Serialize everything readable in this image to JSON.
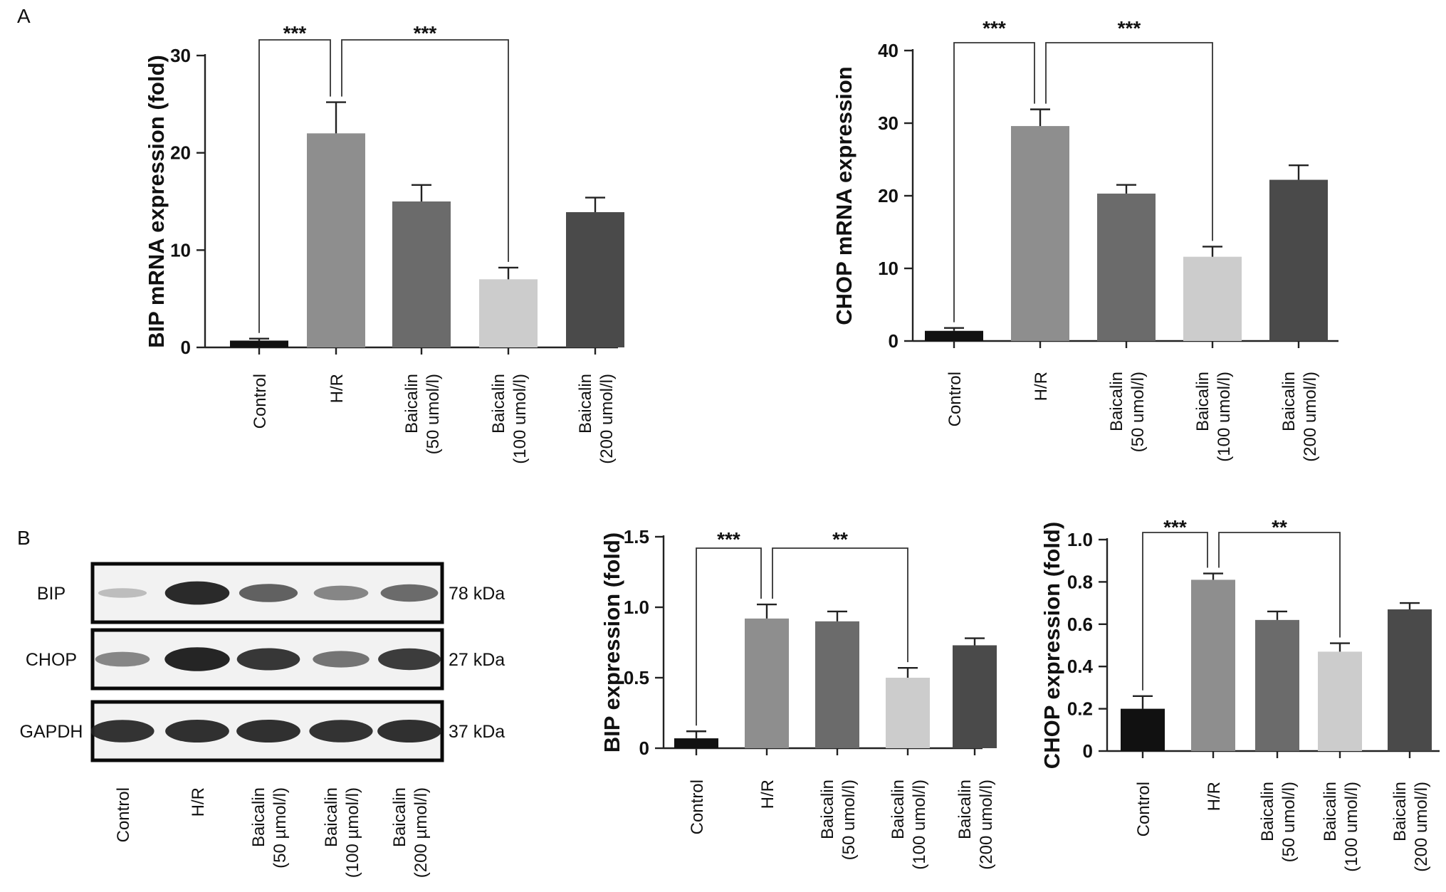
{
  "panel_labels": {
    "a": "A",
    "b": "B"
  },
  "chart_data": [
    {
      "type": "bar",
      "ylabel": "BIP mRNA expression (fold)",
      "ylim": [
        0,
        30
      ],
      "yticks": [
        "0",
        "10",
        "20",
        "30"
      ],
      "categories": [
        [
          "Control"
        ],
        [
          "H/R"
        ],
        [
          "Baicalin",
          "(50 umol/l)"
        ],
        [
          "Baicalin",
          "(100 umol/l)"
        ],
        [
          "Baicalin",
          "(200 umol/l)"
        ]
      ],
      "values": [
        0.7,
        22.0,
        15.0,
        7.0,
        13.9
      ],
      "errors": [
        0.2,
        3.2,
        1.7,
        1.2,
        1.5
      ],
      "colors": [
        "#111111",
        "#8e8e8e",
        "#6b6b6b",
        "#cccccc",
        "#4a4a4a"
      ],
      "significance": [
        {
          "from": 0,
          "to": 1,
          "label": "***"
        },
        {
          "from": 1,
          "to": 3,
          "label": "***"
        }
      ]
    },
    {
      "type": "bar",
      "ylabel": "CHOP mRNA expression",
      "ylim": [
        0,
        40
      ],
      "yticks": [
        "0",
        "10",
        "20",
        "30",
        "40"
      ],
      "categories": [
        [
          "Control"
        ],
        [
          "H/R"
        ],
        [
          "Baicalin",
          "(50 umol/l)"
        ],
        [
          "Baicalin",
          "(100 umol/l)"
        ],
        [
          "Baicalin",
          "(200 umol/l)"
        ]
      ],
      "values": [
        1.4,
        29.6,
        20.3,
        11.6,
        22.2
      ],
      "errors": [
        0.4,
        2.3,
        1.2,
        1.4,
        2.0
      ],
      "colors": [
        "#111111",
        "#8e8e8e",
        "#6b6b6b",
        "#cccccc",
        "#4a4a4a"
      ],
      "significance": [
        {
          "from": 0,
          "to": 1,
          "label": "***"
        },
        {
          "from": 1,
          "to": 3,
          "label": "***"
        }
      ]
    },
    {
      "type": "bar",
      "ylabel": "BIP expression (fold)",
      "ylim": [
        0,
        1.5
      ],
      "yticks": [
        "0",
        "0.5",
        "1.0",
        "1.5"
      ],
      "categories": [
        [
          "Control"
        ],
        [
          "H/R"
        ],
        [
          "Baicalin",
          "(50 umol/l)"
        ],
        [
          "Baicalin",
          "(100 umol/l)"
        ],
        [
          "Baicalin",
          "(200 umol/l)"
        ]
      ],
      "values": [
        0.07,
        0.92,
        0.9,
        0.5,
        0.73
      ],
      "errors": [
        0.05,
        0.1,
        0.07,
        0.07,
        0.05
      ],
      "colors": [
        "#111111",
        "#8e8e8e",
        "#6b6b6b",
        "#cccccc",
        "#4a4a4a"
      ],
      "significance": [
        {
          "from": 0,
          "to": 1,
          "label": "***"
        },
        {
          "from": 1,
          "to": 3,
          "label": "**"
        }
      ]
    },
    {
      "type": "bar",
      "ylabel": "CHOP  expression (fold)",
      "ylim": [
        0,
        1.0
      ],
      "yticks": [
        "0",
        "0.2",
        "0.4",
        "0.6",
        "0.8",
        "1.0"
      ],
      "categories": [
        [
          "Control"
        ],
        [
          "H/R"
        ],
        [
          "Baicalin",
          "(50 umol/l)"
        ],
        [
          "Baicalin",
          "(100 umol/l)"
        ],
        [
          "Baicalin",
          "(200 umol/l)"
        ]
      ],
      "values": [
        0.2,
        0.81,
        0.62,
        0.47,
        0.67
      ],
      "errors": [
        0.06,
        0.03,
        0.04,
        0.04,
        0.03
      ],
      "colors": [
        "#111111",
        "#8e8e8e",
        "#6b6b6b",
        "#cccccc",
        "#4a4a4a"
      ],
      "significance": [
        {
          "from": 0,
          "to": 1,
          "label": "***"
        },
        {
          "from": 1,
          "to": 3,
          "label": "**"
        }
      ]
    }
  ],
  "western_blot": {
    "rows": [
      {
        "protein": "BIP",
        "size": "78 kDa",
        "intensities": [
          0.15,
          0.95,
          0.65,
          0.45,
          0.6
        ]
      },
      {
        "protein": "CHOP",
        "size": "27 kDa",
        "intensities": [
          0.45,
          0.98,
          0.88,
          0.55,
          0.85
        ]
      },
      {
        "protein": "GAPDH",
        "size": "37 kDa",
        "intensities": [
          0.9,
          0.92,
          0.92,
          0.9,
          0.92
        ]
      }
    ],
    "lanes": [
      [
        "Control"
      ],
      [
        "H/R"
      ],
      [
        "Baicalin",
        "(50  µmol/l)"
      ],
      [
        "Baicalin",
        "(100 µmol/l)"
      ],
      [
        "Baicalin",
        "(200 µmol/l)"
      ]
    ]
  }
}
